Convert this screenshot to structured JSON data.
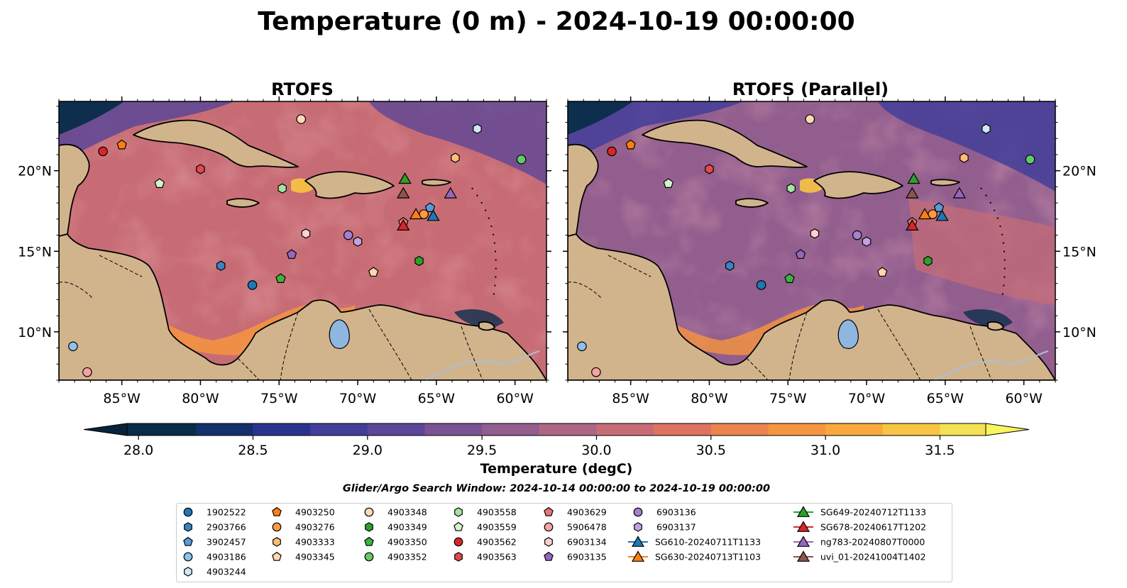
{
  "figure": {
    "suptitle": "Temperature (0 m) - 2024-10-19 00:00:00",
    "search_window": "Glider/Argo Search Window: 2024-10-14 00:00:00 to 2024-10-19 00:00:00",
    "colors": {
      "land": "#d2b48c",
      "lake": "#8fb6e0",
      "river": "#a8c0d8",
      "coast": "#000000",
      "deep_ocean": "#062a42"
    }
  },
  "chart_data": [
    {
      "type": "heatmap",
      "title": "RTOFS",
      "variable": "sea surface temperature",
      "projection": "PlateCarree",
      "x_ticks": [
        "85°W",
        "80°W",
        "75°W",
        "70°W",
        "65°W",
        "60°W"
      ],
      "y_ticks": [
        "20°N",
        "15°N",
        "10°N"
      ],
      "xlim": [
        -89,
        -58
      ],
      "ylim": [
        7,
        24.3
      ],
      "ocean_mean_degC": 30.0
    },
    {
      "type": "heatmap",
      "title": "RTOFS (Parallel)",
      "variable": "sea surface temperature",
      "projection": "PlateCarree",
      "x_ticks": [
        "85°W",
        "80°W",
        "75°W",
        "70°W",
        "65°W",
        "60°W"
      ],
      "y_ticks": [
        "20°N",
        "15°N",
        "10°N"
      ],
      "xlim": [
        -89,
        -58
      ],
      "ylim": [
        7,
        24.3
      ],
      "ocean_mean_degC": 29.5
    }
  ],
  "colorbar": {
    "label": "Temperature (degC)",
    "vmin": 27.95,
    "vmax": 31.7,
    "ticks": [
      "28.0",
      "28.5",
      "29.0",
      "29.5",
      "30.0",
      "30.5",
      "31.0",
      "31.5"
    ],
    "tick_values": [
      28.0,
      28.5,
      29.0,
      29.5,
      30.0,
      30.5,
      31.0,
      31.5
    ],
    "extend": "both",
    "under_color": "#07233a",
    "over_color": "#f7f562",
    "levels": [
      {
        "value": 28.0,
        "color": "#092c48"
      },
      {
        "value": 28.25,
        "color": "#132f6c"
      },
      {
        "value": 28.5,
        "color": "#2b3391"
      },
      {
        "value": 28.75,
        "color": "#433e9a"
      },
      {
        "value": 29.0,
        "color": "#5c4697"
      },
      {
        "value": 29.25,
        "color": "#7a5394"
      },
      {
        "value": 29.5,
        "color": "#925e8e"
      },
      {
        "value": 29.75,
        "color": "#ad6684"
      },
      {
        "value": 30.0,
        "color": "#c76c75"
      },
      {
        "value": 30.25,
        "color": "#df7361"
      },
      {
        "value": 30.5,
        "color": "#ec844d"
      },
      {
        "value": 30.75,
        "color": "#f6953f"
      },
      {
        "value": 31.0,
        "color": "#f9a93c"
      },
      {
        "value": 31.25,
        "color": "#f7c444"
      },
      {
        "value": 31.5,
        "color": "#f3e254"
      }
    ]
  },
  "observations": [
    {
      "id": "1902522",
      "marker": "circle",
      "color": "#1f77b4",
      "lon": -76.7,
      "lat": 12.9
    },
    {
      "id": "2903766",
      "marker": "hexagon",
      "color": "#3a83c4",
      "lon": -78.7,
      "lat": 14.1
    },
    {
      "id": "3902457",
      "marker": "pentagon",
      "color": "#5b9bd5",
      "lon": -65.4,
      "lat": 17.7
    },
    {
      "id": "4903186",
      "marker": "circle",
      "color": "#8dc2ea",
      "lon": -88.1,
      "lat": 9.1
    },
    {
      "id": "4903244",
      "marker": "hexagon",
      "color": "#cfe8f7",
      "lon": -62.4,
      "lat": 22.6
    },
    {
      "id": "4903250",
      "marker": "pentagon",
      "color": "#ff7f0e",
      "lon": -85.0,
      "lat": 21.6
    },
    {
      "id": "4903276",
      "marker": "circle",
      "color": "#ff9940",
      "lon": -65.8,
      "lat": 17.3
    },
    {
      "id": "4903333",
      "marker": "hexagon",
      "color": "#ffbb7a",
      "lon": -63.8,
      "lat": 20.8
    },
    {
      "id": "4903345",
      "marker": "pentagon",
      "color": "#ffd8ae",
      "lon": -69.0,
      "lat": 13.7
    },
    {
      "id": "4903348",
      "marker": "circle",
      "color": "#ffd9b8",
      "lon": -73.6,
      "lat": 23.2
    },
    {
      "id": "4903349",
      "marker": "hexagon",
      "color": "#2ca02c",
      "lon": -66.1,
      "lat": 14.4
    },
    {
      "id": "4903350",
      "marker": "pentagon",
      "color": "#3fb23f",
      "lon": -74.9,
      "lat": 13.3
    },
    {
      "id": "4903352",
      "marker": "circle",
      "color": "#66c966",
      "lon": -59.6,
      "lat": 20.7
    },
    {
      "id": "4903558",
      "marker": "hexagon",
      "color": "#a6e3a0",
      "lon": -74.8,
      "lat": 18.9
    },
    {
      "id": "4903559",
      "marker": "pentagon",
      "color": "#d4f4cc",
      "lon": -82.6,
      "lat": 19.2
    },
    {
      "id": "4903562",
      "marker": "circle",
      "color": "#d62728",
      "lon": -86.2,
      "lat": 21.2
    },
    {
      "id": "4903563",
      "marker": "hexagon",
      "color": "#e24a4a",
      "lon": -80.0,
      "lat": 20.1
    },
    {
      "id": "4903629",
      "marker": "pentagon",
      "color": "#ec7376",
      "lon": -67.1,
      "lat": 16.8
    },
    {
      "id": "5906478",
      "marker": "circle",
      "color": "#f4a3a3",
      "lon": -87.2,
      "lat": 7.5
    },
    {
      "id": "6903134",
      "marker": "hexagon",
      "color": "#fcd0d0",
      "lon": -73.3,
      "lat": 16.1
    },
    {
      "id": "6903135",
      "marker": "pentagon",
      "color": "#9467bd",
      "lon": -74.2,
      "lat": 14.8
    },
    {
      "id": "6903136",
      "marker": "circle",
      "color": "#a67fd0",
      "lon": -70.6,
      "lat": 16.0
    },
    {
      "id": "6903137",
      "marker": "hexagon",
      "color": "#c2a2e0",
      "lon": -70.0,
      "lat": 15.6
    }
  ],
  "gliders": [
    {
      "id": "SG610-20240711T1133",
      "color": "#1f77b4",
      "lon": -65.2,
      "lat": 17.2
    },
    {
      "id": "SG630-20240713T1103",
      "color": "#ff7f0e",
      "lon": -66.3,
      "lat": 17.3
    },
    {
      "id": "SG649-20240712T1133",
      "color": "#2ca02c",
      "lon": -67.0,
      "lat": 19.5
    },
    {
      "id": "SG678-20240617T1202",
      "color": "#d62728",
      "lon": -67.1,
      "lat": 16.6
    },
    {
      "id": "ng783-20240807T0000",
      "color": "#9467bd",
      "lon": -64.1,
      "lat": 18.6
    },
    {
      "id": "uvi_01-20241004T1402",
      "color": "#8c564b",
      "lon": -67.1,
      "lat": 18.6
    }
  ]
}
